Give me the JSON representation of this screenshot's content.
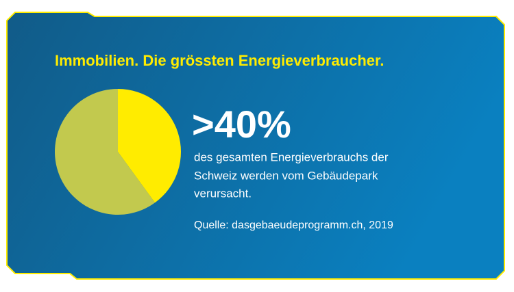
{
  "chart_data": {
    "type": "pie",
    "title": "Immobilien. Die grössten Energieverbraucher.",
    "categories": [
      null,
      null
    ],
    "values": [
      40,
      60
    ],
    "value_labels": [
      ">40%",
      null
    ],
    "colors": [
      "#ffec00",
      "#c2c94e"
    ],
    "description": [
      "des gesamten Energieverbrauchs der",
      "Schweiz werden vom Gebäudepark",
      "verursacht."
    ],
    "source": "Quelle: dasgebaeudeprogramm.ch, 2019"
  }
}
